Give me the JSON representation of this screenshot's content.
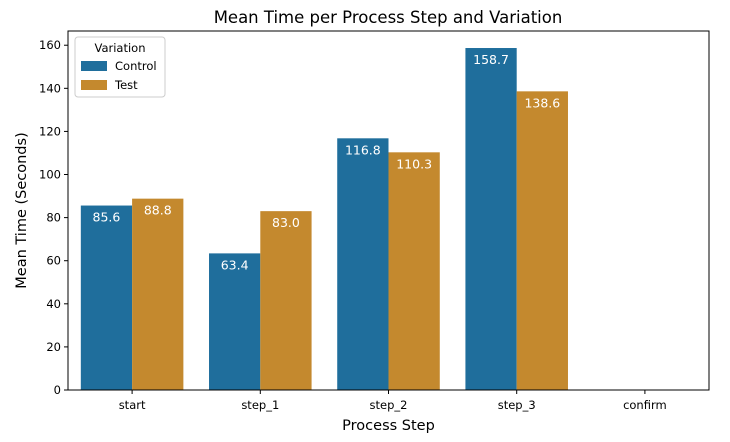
{
  "chart_data": {
    "type": "bar",
    "title": "Mean Time per Process Step and Variation",
    "xlabel": "Process Step",
    "ylabel": "Mean Time (Seconds)",
    "categories": [
      "start",
      "step_1",
      "step_2",
      "step_3",
      "confirm"
    ],
    "series": [
      {
        "name": "Control",
        "color": "#1f6e9c",
        "values": [
          85.6,
          63.4,
          116.8,
          158.7,
          null
        ],
        "labels": [
          "85.6",
          "63.4",
          "116.8",
          "158.7",
          ""
        ]
      },
      {
        "name": "Test",
        "color": "#c4892e",
        "values": [
          88.8,
          83.0,
          110.3,
          138.6,
          null
        ],
        "labels": [
          "88.8",
          "83.0",
          "110.3",
          "138.6",
          ""
        ]
      }
    ],
    "ylim": [
      0,
      166.6
    ],
    "yticks": [
      0,
      20,
      40,
      60,
      80,
      100,
      120,
      140,
      160
    ],
    "ytick_labels": [
      "0",
      "20",
      "40",
      "60",
      "80",
      "100",
      "120",
      "140",
      "160"
    ],
    "grid": false,
    "legend": {
      "title": "Variation",
      "placement": "top-left"
    }
  }
}
